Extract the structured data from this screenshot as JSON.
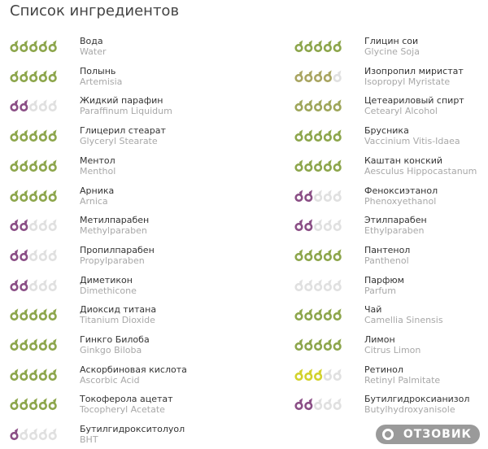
{
  "title": "Список ингредиентов",
  "empty_color": "#e0e0e0",
  "columns": [
    {
      "items": [
        {
          "name": "Вода",
          "latin": "Water",
          "rating": 5,
          "color": "#8da64c"
        },
        {
          "name": "Полынь",
          "latin": "Artemisia",
          "rating": 5,
          "color": "#8da64c"
        },
        {
          "name": "Жидкий парафин",
          "latin": "Paraffinum Liquidum",
          "rating": 2,
          "color": "#8b4f86"
        },
        {
          "name": "Глицерил стеарат",
          "latin": "Glyceryl Stearate",
          "rating": 5,
          "color": "#8da64c"
        },
        {
          "name": "Ментол",
          "latin": "Menthol",
          "rating": 5,
          "color": "#8da64c"
        },
        {
          "name": "Арника",
          "latin": "Arnica",
          "rating": 5,
          "color": "#8da64c"
        },
        {
          "name": "Метилпарабен",
          "latin": "Methylparaben",
          "rating": 2,
          "color": "#8b4f86"
        },
        {
          "name": "Пропилпарабен",
          "latin": "Propylparaben",
          "rating": 2,
          "color": "#8b4f86"
        },
        {
          "name": "Диметикон",
          "latin": "Dimethicone",
          "rating": 2,
          "color": "#8b4f86"
        },
        {
          "name": "Диоксид титана",
          "latin": "Titanium Dioxide",
          "rating": 5,
          "color": "#8da64c"
        },
        {
          "name": "Гинкго Билоба",
          "latin": "Ginkgo Biloba",
          "rating": 5,
          "color": "#8da64c"
        },
        {
          "name": "Аскорбиновая кислота",
          "latin": "Ascorbic Acid",
          "rating": 5,
          "color": "#8da64c"
        },
        {
          "name": "Токоферола ацетат",
          "latin": "Tocopheryl Acetate",
          "rating": 5,
          "color": "#8da64c"
        },
        {
          "name": "Бутилгидрокситолуол",
          "latin": "BHT",
          "rating": 1,
          "color": "#8b4f86"
        }
      ]
    },
    {
      "items": [
        {
          "name": "Глицин сои",
          "latin": "Glycine Soja",
          "rating": 5,
          "color": "#8da64c"
        },
        {
          "name": "Изопропил миристат",
          "latin": "Isopropyl Myristate",
          "rating": 4,
          "color": "#a9a562"
        },
        {
          "name": "Цетеариловый спирт",
          "latin": "Cetearyl Alcohol",
          "rating": 5,
          "color": "#9ea65a"
        },
        {
          "name": "Брусника",
          "latin": "Vaccinium Vitis-Idaea",
          "rating": 5,
          "color": "#8da64c"
        },
        {
          "name": "Каштан конский",
          "latin": "Aesculus Hippocastanum",
          "rating": 5,
          "color": "#8da64c"
        },
        {
          "name": "Феноксиэтанол",
          "latin": "Phenoxyethanol",
          "rating": 2,
          "color": "#8b4f86"
        },
        {
          "name": "Этилпарабен",
          "latin": "Ethylparaben",
          "rating": 2,
          "color": "#8b4f86"
        },
        {
          "name": "Пантенол",
          "latin": "Panthenol",
          "rating": 5,
          "color": "#8da64c"
        },
        {
          "name": "Парфюм",
          "latin": "Parfum",
          "rating": 0,
          "color": "#8b4f86"
        },
        {
          "name": "Чай",
          "latin": "Camellia Sinensis",
          "rating": 5,
          "color": "#8da64c"
        },
        {
          "name": "Лимон",
          "latin": "Citrus Limon",
          "rating": 5,
          "color": "#8da64c"
        },
        {
          "name": "Ретинол",
          "latin": "Retinyl Palmitate",
          "rating": 3,
          "color": "#d2d22c"
        },
        {
          "name": "Бутилгидроксианизол",
          "latin": "Butylhydroxyanisole",
          "rating": 2,
          "color": "#8b4f86"
        }
      ]
    }
  ],
  "watermark": "ОТЗОВИК"
}
